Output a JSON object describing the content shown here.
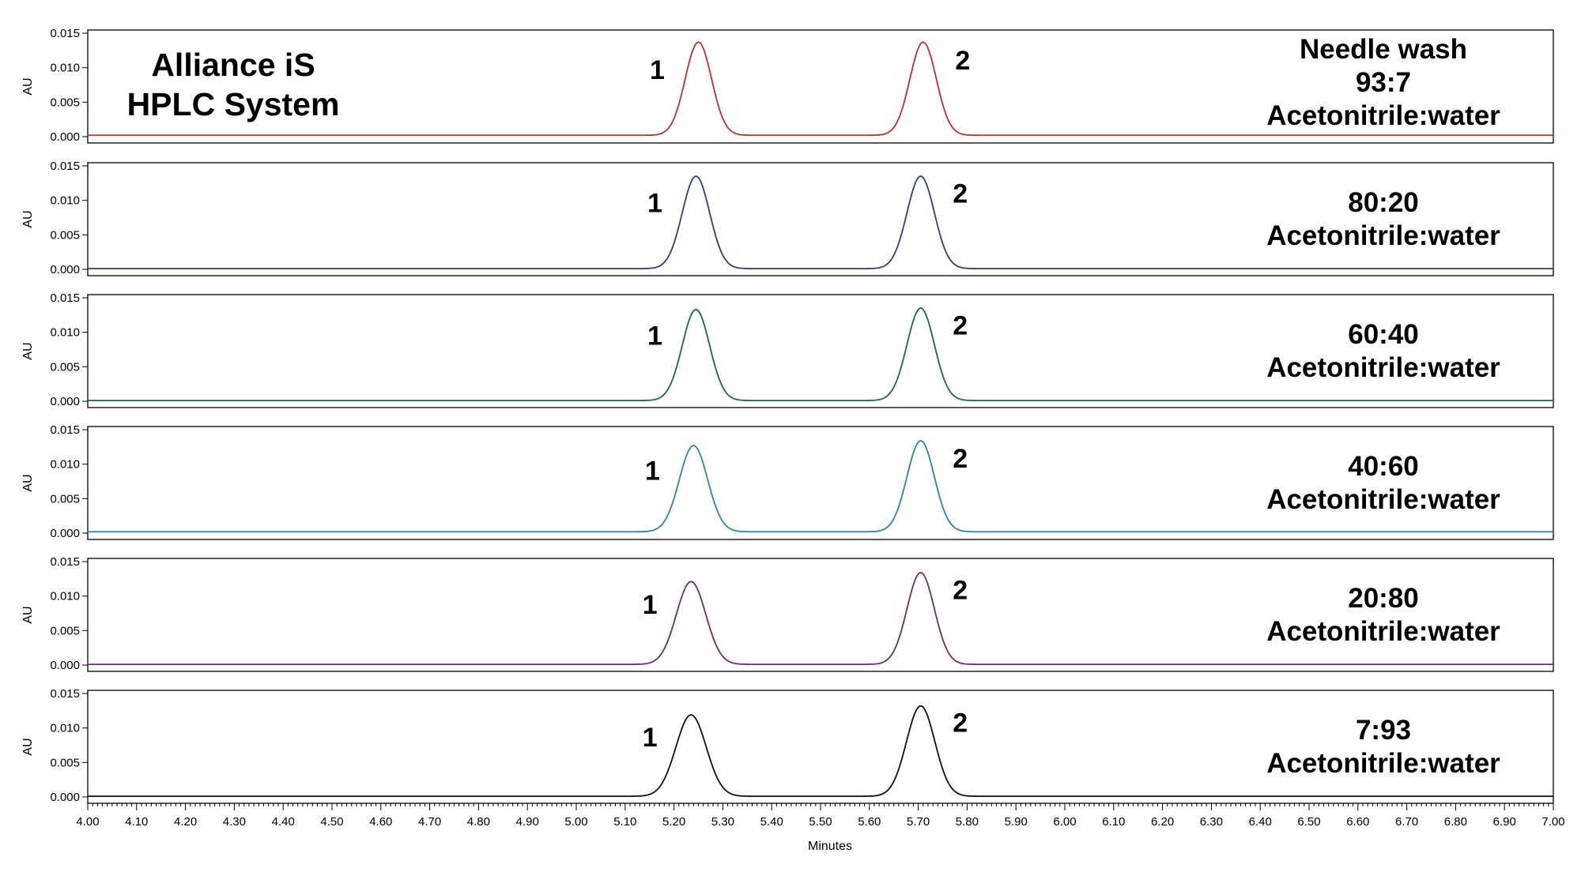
{
  "chart_data": {
    "type": "line",
    "layout": "stacked-panels",
    "xlabel": "Minutes",
    "xlim": [
      4.0,
      7.0
    ],
    "x_ticks": [
      "4.00",
      "4.10",
      "4.20",
      "4.30",
      "4.40",
      "4.50",
      "4.60",
      "4.70",
      "4.80",
      "4.90",
      "5.00",
      "5.10",
      "5.20",
      "5.30",
      "5.40",
      "5.50",
      "5.60",
      "5.70",
      "5.80",
      "5.90",
      "6.00",
      "6.10",
      "6.20",
      "6.30",
      "6.40",
      "6.50",
      "6.60",
      "6.70",
      "6.80",
      "6.90",
      "7.00"
    ],
    "ylabel": "AU",
    "ylim": [
      0.0,
      0.015
    ],
    "y_ticks": [
      "0.000",
      "0.005",
      "0.010",
      "0.015"
    ],
    "annotation": [
      "Alliance iS",
      "HPLC System"
    ],
    "peak_labels": [
      "1",
      "2"
    ],
    "panels": [
      {
        "condition": [
          "Needle wash",
          "93:7",
          "Acetonitrile:water"
        ],
        "color": "#c0302b",
        "baseline": 0.0002,
        "peaks": [
          {
            "label": "1",
            "x": 5.25,
            "height": 0.0135,
            "sigma": 0.027
          },
          {
            "label": "2",
            "x": 5.71,
            "height": 0.0135,
            "sigma": 0.027
          }
        ]
      },
      {
        "condition": [
          "80:20",
          "Acetonitrile:water"
        ],
        "color": "#2b3f7d",
        "baseline": 0.0001,
        "peaks": [
          {
            "label": "1",
            "x": 5.245,
            "height": 0.0134,
            "sigma": 0.028
          },
          {
            "label": "2",
            "x": 5.705,
            "height": 0.0134,
            "sigma": 0.028
          }
        ]
      },
      {
        "condition": [
          "60:40",
          "Acetonitrile:water"
        ],
        "color": "#1b6b3c",
        "baseline": 0.0001,
        "peaks": [
          {
            "label": "1",
            "x": 5.245,
            "height": 0.0132,
            "sigma": 0.028
          },
          {
            "label": "2",
            "x": 5.705,
            "height": 0.0134,
            "sigma": 0.028
          }
        ]
      },
      {
        "condition": [
          "40:60",
          "Acetonitrile:water"
        ],
        "color": "#2f82aa",
        "baseline": 0.0002,
        "peaks": [
          {
            "label": "1",
            "x": 5.24,
            "height": 0.0125,
            "sigma": 0.029
          },
          {
            "label": "2",
            "x": 5.705,
            "height": 0.0132,
            "sigma": 0.028
          }
        ]
      },
      {
        "condition": [
          "20:80",
          "Acetonitrile:water"
        ],
        "color": "#6b2d75",
        "baseline": 0.0001,
        "peaks": [
          {
            "label": "1",
            "x": 5.235,
            "height": 0.012,
            "sigma": 0.03
          },
          {
            "label": "2",
            "x": 5.705,
            "height": 0.0133,
            "sigma": 0.028
          }
        ]
      },
      {
        "condition": [
          "7:93",
          "Acetonitrile:water"
        ],
        "color": "#111111",
        "baseline": 0.0001,
        "peaks": [
          {
            "label": "1",
            "x": 5.235,
            "height": 0.0118,
            "sigma": 0.031
          },
          {
            "label": "2",
            "x": 5.705,
            "height": 0.0131,
            "sigma": 0.029
          }
        ]
      }
    ]
  }
}
